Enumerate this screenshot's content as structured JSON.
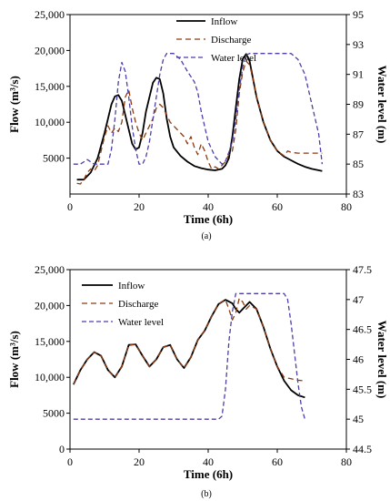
{
  "chart_data": [
    {
      "type": "line",
      "caption": "(a)",
      "xlabel": "Time (6h)",
      "ylabel_left": "Flow (m³/s)",
      "ylabel_right": "Water level (m)",
      "xlim": [
        0,
        80
      ],
      "xticks": [
        0,
        20,
        40,
        60,
        80
      ],
      "ylim_left": [
        0,
        25000
      ],
      "yticks_left": [
        5000,
        10000,
        15000,
        20000,
        25000
      ],
      "ytick_labels_left": [
        "5000",
        "10,000",
        "15,000",
        "20,000",
        "25,000"
      ],
      "ylim_right": [
        83,
        95
      ],
      "yticks_right": [
        83,
        85,
        87,
        89,
        91,
        93,
        95
      ],
      "legend_position": "top-center",
      "series": [
        {
          "name": "Inflow",
          "axis": "left",
          "style": "solid",
          "color": "#000000",
          "x": [
            2,
            4,
            6,
            8,
            10,
            11,
            12,
            13,
            14,
            15,
            16,
            17,
            18,
            19,
            20,
            21,
            22,
            23,
            24,
            25,
            26,
            27,
            28,
            29,
            30,
            32,
            34,
            36,
            38,
            40,
            42,
            44,
            45,
            46,
            47,
            48,
            49,
            50,
            51,
            52,
            53,
            54,
            56,
            58,
            60,
            62,
            64,
            66,
            68,
            70,
            73
          ],
          "y": [
            2000,
            2000,
            3000,
            5000,
            8500,
            10500,
            12500,
            13600,
            13800,
            13000,
            11000,
            9000,
            7000,
            6200,
            6500,
            8500,
            11500,
            13500,
            15500,
            16200,
            16000,
            14000,
            10500,
            8000,
            6500,
            5300,
            4500,
            3900,
            3600,
            3400,
            3300,
            3500,
            4000,
            5000,
            8000,
            12000,
            16000,
            18800,
            19500,
            18500,
            16000,
            13500,
            10000,
            7500,
            6000,
            5200,
            4700,
            4200,
            3800,
            3500,
            3200
          ]
        },
        {
          "name": "Discharge",
          "axis": "left",
          "style": "dashed",
          "color": "#8b3a0f",
          "x": [
            2,
            3,
            4,
            5,
            6,
            7,
            8,
            9,
            10,
            11,
            12,
            13,
            14,
            15,
            16,
            17,
            18,
            19,
            20,
            21,
            22,
            23,
            24,
            25,
            26,
            27,
            28,
            29,
            30,
            31,
            32,
            33,
            34,
            35,
            36,
            37,
            38,
            39,
            40,
            41,
            42,
            43,
            44,
            45,
            46,
            47,
            48,
            49,
            50,
            51,
            52,
            53,
            54,
            56,
            58,
            60,
            62,
            63,
            64,
            66,
            68,
            70,
            72,
            73
          ],
          "y": [
            1500,
            1400,
            2000,
            3000,
            3500,
            3200,
            4000,
            6000,
            8000,
            9500,
            8500,
            9200,
            8700,
            10000,
            13500,
            14500,
            12000,
            10000,
            8500,
            7500,
            8500,
            9500,
            10500,
            12000,
            12500,
            12000,
            11000,
            10000,
            9500,
            9000,
            8500,
            8000,
            7000,
            8000,
            6500,
            5500,
            7000,
            6000,
            4500,
            3500,
            3800,
            3500,
            4000,
            4500,
            5500,
            6000,
            9000,
            14000,
            17000,
            18500,
            18000,
            16000,
            13500,
            10000,
            7500,
            6000,
            5300,
            6000,
            5800,
            5700,
            5700,
            5700,
            5700,
            5700
          ]
        },
        {
          "name": "Water level",
          "axis": "right",
          "style": "dashed",
          "color": "#4b3fa6",
          "x": [
            1,
            3,
            5,
            7,
            9,
            11,
            12,
            13,
            14,
            15,
            16,
            17,
            18,
            19,
            20,
            21,
            22,
            23,
            24,
            25,
            26,
            27,
            28,
            30,
            32,
            34,
            36,
            37,
            38,
            40,
            42,
            44,
            45,
            46,
            47,
            48,
            49,
            50,
            51,
            52,
            54,
            56,
            60,
            64,
            66,
            68,
            70,
            72,
            73
          ],
          "y": [
            85,
            85,
            85.3,
            85,
            85,
            85,
            86,
            88,
            90.5,
            91.8,
            91.2,
            89.5,
            87.5,
            86,
            85,
            85,
            85.5,
            86.5,
            88,
            89.5,
            91,
            92,
            92.4,
            92.4,
            92,
            91.2,
            90.5,
            89.8,
            88.5,
            86.5,
            85.5,
            85,
            85.2,
            85.8,
            86.5,
            88,
            90,
            91.5,
            92.3,
            92.4,
            92.4,
            92.4,
            92.4,
            92.4,
            92,
            91,
            89,
            87,
            85
          ]
        }
      ]
    },
    {
      "type": "line",
      "caption": "(b)",
      "xlabel": "Time (6h)",
      "ylabel_left": "Flow (m³/s)",
      "ylabel_right": "Water level (m)",
      "xlim": [
        0,
        80
      ],
      "xticks": [
        0,
        20,
        40,
        60,
        80
      ],
      "ylim_left": [
        0,
        25000
      ],
      "yticks_left": [
        0,
        5000,
        10000,
        15000,
        20000,
        25000
      ],
      "ytick_labels_left": [
        "0",
        "5000",
        "10,000",
        "15,000",
        "20,000",
        "25,000"
      ],
      "ylim_right": [
        44.5,
        47.5
      ],
      "yticks_right": [
        44.5,
        45,
        45.5,
        46,
        46.5,
        47,
        47.5
      ],
      "legend_position": "top-left",
      "series": [
        {
          "name": "Inflow",
          "axis": "left",
          "style": "solid",
          "color": "#000000",
          "x": [
            1,
            3,
            5,
            7,
            9,
            11,
            13,
            15,
            17,
            19,
            21,
            23,
            25,
            27,
            29,
            31,
            33,
            35,
            37,
            39,
            41,
            43,
            45,
            47,
            48,
            49,
            50,
            52,
            54,
            56,
            58,
            60,
            62,
            64,
            66,
            68
          ],
          "y": [
            9000,
            11000,
            12500,
            13500,
            13000,
            11000,
            10000,
            11500,
            14500,
            14600,
            13000,
            11500,
            12500,
            14200,
            14500,
            12500,
            11300,
            12800,
            15200,
            16500,
            18500,
            20200,
            20800,
            20300,
            19500,
            19000,
            19500,
            20500,
            19500,
            17000,
            14000,
            11500,
            9500,
            8200,
            7500,
            7200
          ]
        },
        {
          "name": "Discharge",
          "axis": "left",
          "style": "dashed",
          "color": "#8b3a0f",
          "x": [
            1,
            3,
            5,
            7,
            9,
            11,
            13,
            15,
            17,
            19,
            21,
            23,
            25,
            27,
            29,
            31,
            33,
            35,
            37,
            39,
            41,
            43,
            45,
            46,
            47,
            48,
            49,
            50,
            51,
            52,
            54,
            56,
            58,
            60,
            62,
            64,
            66,
            68
          ],
          "y": [
            9000,
            11000,
            12500,
            13500,
            13000,
            11000,
            10000,
            11500,
            14500,
            14600,
            13000,
            11500,
            12500,
            14200,
            14500,
            12500,
            11300,
            12800,
            15200,
            16500,
            18500,
            20200,
            20800,
            19500,
            18000,
            19000,
            21000,
            20500,
            19500,
            20000,
            19500,
            17000,
            14000,
            11500,
            10000,
            9800,
            9600,
            9500
          ]
        },
        {
          "name": "Water level",
          "axis": "right",
          "style": "dashed",
          "color": "#4b3fa6",
          "x": [
            1,
            10,
            20,
            30,
            40,
            43,
            44,
            45,
            46,
            47,
            48,
            50,
            55,
            60,
            62,
            63,
            64,
            65,
            66,
            67,
            68
          ],
          "y": [
            45,
            45,
            45,
            45,
            45,
            45,
            45.05,
            45.5,
            46.3,
            46.8,
            47.1,
            47.1,
            47.1,
            47.1,
            47.1,
            47,
            46.6,
            46.1,
            45.6,
            45.2,
            45
          ]
        }
      ]
    }
  ]
}
